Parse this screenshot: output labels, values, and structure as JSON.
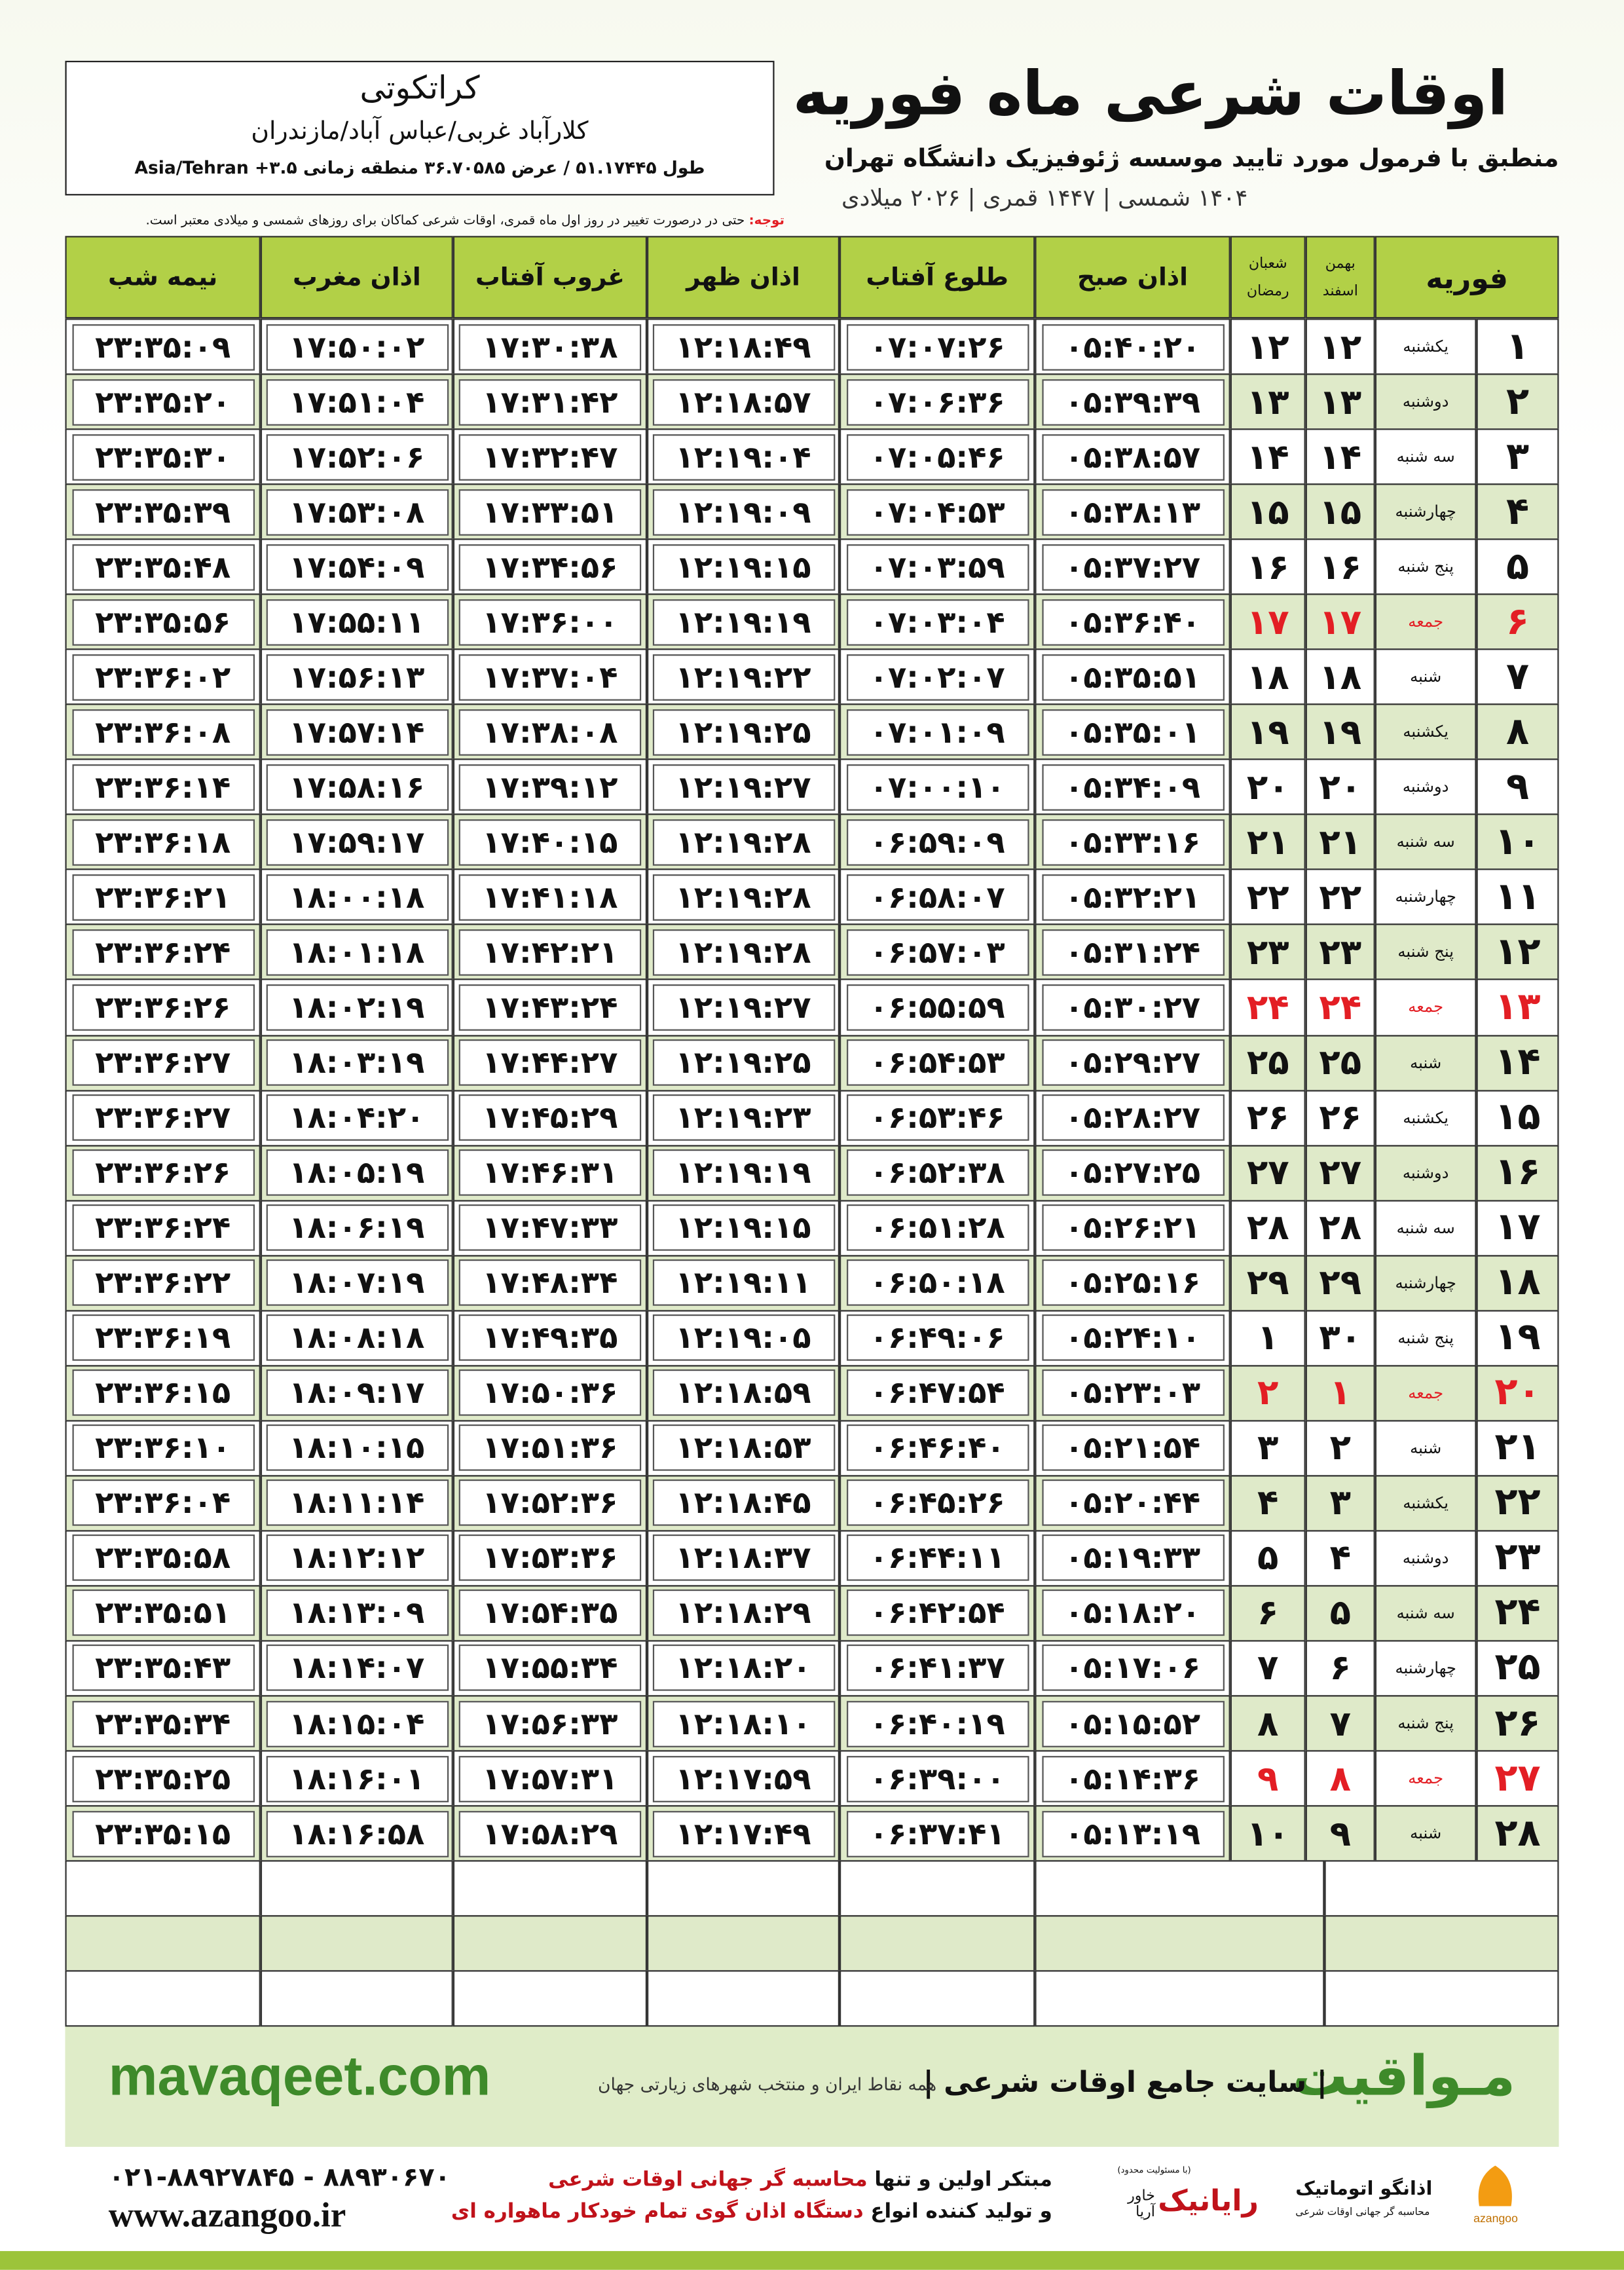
{
  "header": {
    "title": "اوقات شرعی ماه فوریه",
    "subtitle": "منطبق با فرمول مورد تایید موسسه ژئوفیزیک دانشگاه تهران",
    "dates": "۱۴۰۴ شمسی | ۱۴۴۷ قمری | ۲۰۲۶ میلادی"
  },
  "location": {
    "city": "کراتکوتی",
    "region": "کلارآباد غربی/عباس آباد/مازندران",
    "coords": "طول ۵۱.۱۷۴۴۵ / عرض ۳۶.۷۰۵۸۵ منطقه زمانی ۳.۵+ Asia/Tehran"
  },
  "note": {
    "label": "توجه:",
    "text": "حتی در درصورت تغییر در روز اول ماه قمری، اوقات شرعی کماکان برای روزهای شمسی و میلادی معتبر است."
  },
  "table": {
    "columns": [
      {
        "title": "فوریه"
      },
      {
        "top": "بهمن",
        "bottom": "اسفند"
      },
      {
        "top": "شعبان",
        "bottom": "رمضان"
      },
      {
        "title": "اذان صبح"
      },
      {
        "title": "طلوع آفتاب"
      },
      {
        "title": "اذان ظهر"
      },
      {
        "title": "غروب آفتاب"
      },
      {
        "title": "اذان مغرب"
      },
      {
        "title": "نیمه شب"
      }
    ],
    "rows": [
      {
        "cells": [
          "۱",
          "یکشنبه",
          "۱۲",
          "۱۲",
          "۰۵:۴۰:۲۰",
          "۰۷:۰۷:۲۶",
          "۱۲:۱۸:۴۹",
          "۱۷:۳۰:۳۸",
          "۱۷:۵۰:۰۲",
          "۲۳:۳۵:۰۹"
        ]
      },
      {
        "cells": [
          "۲",
          "دوشنبه",
          "۱۳",
          "۱۳",
          "۰۵:۳۹:۳۹",
          "۰۷:۰۶:۳۶",
          "۱۲:۱۸:۵۷",
          "۱۷:۳۱:۴۲",
          "۱۷:۵۱:۰۴",
          "۲۳:۳۵:۲۰"
        ]
      },
      {
        "cells": [
          "۳",
          "سه شنبه",
          "۱۴",
          "۱۴",
          "۰۵:۳۸:۵۷",
          "۰۷:۰۵:۴۶",
          "۱۲:۱۹:۰۴",
          "۱۷:۳۲:۴۷",
          "۱۷:۵۲:۰۶",
          "۲۳:۳۵:۳۰"
        ]
      },
      {
        "cells": [
          "۴",
          "چهارشنبه",
          "۱۵",
          "۱۵",
          "۰۵:۳۸:۱۳",
          "۰۷:۰۴:۵۳",
          "۱۲:۱۹:۰۹",
          "۱۷:۳۳:۵۱",
          "۱۷:۵۳:۰۸",
          "۲۳:۳۵:۳۹"
        ]
      },
      {
        "cells": [
          "۵",
          "پنج شنبه",
          "۱۶",
          "۱۶",
          "۰۵:۳۷:۲۷",
          "۰۷:۰۳:۵۹",
          "۱۲:۱۹:۱۵",
          "۱۷:۳۴:۵۶",
          "۱۷:۵۴:۰۹",
          "۲۳:۳۵:۴۸"
        ]
      },
      {
        "cells": [
          "۶",
          "جمعه",
          "۱۷",
          "۱۷",
          "۰۵:۳۶:۴۰",
          "۰۷:۰۳:۰۴",
          "۱۲:۱۹:۱۹",
          "۱۷:۳۶:۰۰",
          "۱۷:۵۵:۱۱",
          "۲۳:۳۵:۵۶"
        ],
        "color": "#e31e24"
      },
      {
        "cells": [
          "۷",
          "شنبه",
          "۱۸",
          "۱۸",
          "۰۵:۳۵:۵۱",
          "۰۷:۰۲:۰۷",
          "۱۲:۱۹:۲۲",
          "۱۷:۳۷:۰۴",
          "۱۷:۵۶:۱۳",
          "۲۳:۳۶:۰۲"
        ]
      },
      {
        "cells": [
          "۸",
          "یکشنبه",
          "۱۹",
          "۱۹",
          "۰۵:۳۵:۰۱",
          "۰۷:۰۱:۰۹",
          "۱۲:۱۹:۲۵",
          "۱۷:۳۸:۰۸",
          "۱۷:۵۷:۱۴",
          "۲۳:۳۶:۰۸"
        ]
      },
      {
        "cells": [
          "۹",
          "دوشنبه",
          "۲۰",
          "۲۰",
          "۰۵:۳۴:۰۹",
          "۰۷:۰۰:۱۰",
          "۱۲:۱۹:۲۷",
          "۱۷:۳۹:۱۲",
          "۱۷:۵۸:۱۶",
          "۲۳:۳۶:۱۴"
        ]
      },
      {
        "cells": [
          "۱۰",
          "سه شنبه",
          "۲۱",
          "۲۱",
          "۰۵:۳۳:۱۶",
          "۰۶:۵۹:۰۹",
          "۱۲:۱۹:۲۸",
          "۱۷:۴۰:۱۵",
          "۱۷:۵۹:۱۷",
          "۲۳:۳۶:۱۸"
        ]
      },
      {
        "cells": [
          "۱۱",
          "چهارشنبه",
          "۲۲",
          "۲۲",
          "۰۵:۳۲:۲۱",
          "۰۶:۵۸:۰۷",
          "۱۲:۱۹:۲۸",
          "۱۷:۴۱:۱۸",
          "۱۸:۰۰:۱۸",
          "۲۳:۳۶:۲۱"
        ]
      },
      {
        "cells": [
          "۱۲",
          "پنج شنبه",
          "۲۳",
          "۲۳",
          "۰۵:۳۱:۲۴",
          "۰۶:۵۷:۰۳",
          "۱۲:۱۹:۲۸",
          "۱۷:۴۲:۲۱",
          "۱۸:۰۱:۱۸",
          "۲۳:۳۶:۲۴"
        ]
      },
      {
        "cells": [
          "۱۳",
          "جمعه",
          "۲۴",
          "۲۴",
          "۰۵:۳۰:۲۷",
          "۰۶:۵۵:۵۹",
          "۱۲:۱۹:۲۷",
          "۱۷:۴۳:۲۴",
          "۱۸:۰۲:۱۹",
          "۲۳:۳۶:۲۶"
        ],
        "color": "#e31e24"
      },
      {
        "cells": [
          "۱۴",
          "شنبه",
          "۲۵",
          "۲۵",
          "۰۵:۲۹:۲۷",
          "۰۶:۵۴:۵۳",
          "۱۲:۱۹:۲۵",
          "۱۷:۴۴:۲۷",
          "۱۸:۰۳:۱۹",
          "۲۳:۳۶:۲۷"
        ]
      },
      {
        "cells": [
          "۱۵",
          "یکشنبه",
          "۲۶",
          "۲۶",
          "۰۵:۲۸:۲۷",
          "۰۶:۵۳:۴۶",
          "۱۲:۱۹:۲۳",
          "۱۷:۴۵:۲۹",
          "۱۸:۰۴:۲۰",
          "۲۳:۳۶:۲۷"
        ]
      },
      {
        "cells": [
          "۱۶",
          "دوشنبه",
          "۲۷",
          "۲۷",
          "۰۵:۲۷:۲۵",
          "۰۶:۵۲:۳۸",
          "۱۲:۱۹:۱۹",
          "۱۷:۴۶:۳۱",
          "۱۸:۰۵:۱۹",
          "۲۳:۳۶:۲۶"
        ]
      },
      {
        "cells": [
          "۱۷",
          "سه شنبه",
          "۲۸",
          "۲۸",
          "۰۵:۲۶:۲۱",
          "۰۶:۵۱:۲۸",
          "۱۲:۱۹:۱۵",
          "۱۷:۴۷:۳۳",
          "۱۸:۰۶:۱۹",
          "۲۳:۳۶:۲۴"
        ]
      },
      {
        "cells": [
          "۱۸",
          "چهارشنبه",
          "۲۹",
          "۲۹",
          "۰۵:۲۵:۱۶",
          "۰۶:۵۰:۱۸",
          "۱۲:۱۹:۱۱",
          "۱۷:۴۸:۳۴",
          "۱۸:۰۷:۱۹",
          "۲۳:۳۶:۲۲"
        ]
      },
      {
        "cells": [
          "۱۹",
          "پنج شنبه",
          "۳۰",
          "۱",
          "۰۵:۲۴:۱۰",
          "۰۶:۴۹:۰۶",
          "۱۲:۱۹:۰۵",
          "۱۷:۴۹:۳۵",
          "۱۸:۰۸:۱۸",
          "۲۳:۳۶:۱۹"
        ]
      },
      {
        "cells": [
          "۲۰",
          "جمعه",
          "۱",
          "۲",
          "۰۵:۲۳:۰۳",
          "۰۶:۴۷:۵۴",
          "۱۲:۱۸:۵۹",
          "۱۷:۵۰:۳۶",
          "۱۸:۰۹:۱۷",
          "۲۳:۳۶:۱۵"
        ],
        "color": "#e31e24"
      },
      {
        "cells": [
          "۲۱",
          "شنبه",
          "۲",
          "۳",
          "۰۵:۲۱:۵۴",
          "۰۶:۴۶:۴۰",
          "۱۲:۱۸:۵۳",
          "۱۷:۵۱:۳۶",
          "۱۸:۱۰:۱۵",
          "۲۳:۳۶:۱۰"
        ]
      },
      {
        "cells": [
          "۲۲",
          "یکشنبه",
          "۳",
          "۴",
          "۰۵:۲۰:۴۴",
          "۰۶:۴۵:۲۶",
          "۱۲:۱۸:۴۵",
          "۱۷:۵۲:۳۶",
          "۱۸:۱۱:۱۴",
          "۲۳:۳۶:۰۴"
        ]
      },
      {
        "cells": [
          "۲۳",
          "دوشنبه",
          "۴",
          "۵",
          "۰۵:۱۹:۳۳",
          "۰۶:۴۴:۱۱",
          "۱۲:۱۸:۳۷",
          "۱۷:۵۳:۳۶",
          "۱۸:۱۲:۱۲",
          "۲۳:۳۵:۵۸"
        ]
      },
      {
        "cells": [
          "۲۴",
          "سه شنبه",
          "۵",
          "۶",
          "۰۵:۱۸:۲۰",
          "۰۶:۴۲:۵۴",
          "۱۲:۱۸:۲۹",
          "۱۷:۵۴:۳۵",
          "۱۸:۱۳:۰۹",
          "۲۳:۳۵:۵۱"
        ]
      },
      {
        "cells": [
          "۲۵",
          "چهارشنبه",
          "۶",
          "۷",
          "۰۵:۱۷:۰۶",
          "۰۶:۴۱:۳۷",
          "۱۲:۱۸:۲۰",
          "۱۷:۵۵:۳۴",
          "۱۸:۱۴:۰۷",
          "۲۳:۳۵:۴۳"
        ]
      },
      {
        "cells": [
          "۲۶",
          "پنج شنبه",
          "۷",
          "۸",
          "۰۵:۱۵:۵۲",
          "۰۶:۴۰:۱۹",
          "۱۲:۱۸:۱۰",
          "۱۷:۵۶:۳۳",
          "۱۸:۱۵:۰۴",
          "۲۳:۳۵:۳۴"
        ]
      },
      {
        "cells": [
          "۲۷",
          "جمعه",
          "۸",
          "۹",
          "۰۵:۱۴:۳۶",
          "۰۶:۳۹:۰۰",
          "۱۲:۱۷:۵۹",
          "۱۷:۵۷:۳۱",
          "۱۸:۱۶:۰۱",
          "۲۳:۳۵:۲۵"
        ],
        "color": "#e31e24"
      },
      {
        "cells": [
          "۲۸",
          "شنبه",
          "۹",
          "۱۰",
          "۰۵:۱۳:۱۹",
          "۰۶:۳۷:۴۱",
          "۱۲:۱۷:۴۹",
          "۱۷:۵۸:۲۹",
          "۱۸:۱۶:۵۸",
          "۲۳:۳۵:۱۵"
        ]
      }
    ]
  },
  "banner": {
    "brand": "مـواقیت",
    "slogan": "| سایت جامع اوقات شرعی |",
    "coverage": "همه نقاط ایران و منتخب شهرهای زیارتی جهان",
    "url": "mavaqeet.com"
  },
  "footer": {
    "phone": "۰۲۱-۸۸۹۲۷۸۴۵ - ۸۸۹۳۰۶۷۰",
    "website": "www.azangoo.ir",
    "line1_a": "مبتکر اولین و تنها",
    "line1_b": "محاسبه گر جهانی اوقات شرعی",
    "line2_a": "و تولید کننده انواع",
    "line2_b": "دستگاه اذان گوی تمام خودکار ماهواره ای",
    "logo1_note": "(با مسئولیت محدود)",
    "logo1_name": "رایانیک",
    "logo1_sub": "خاور آریا",
    "logo2_name": "اذانگو اتوماتیک",
    "logo2_sub": "محاسبه گر جهانی اوقات شرعی",
    "logo2_latin": "azangoo"
  }
}
